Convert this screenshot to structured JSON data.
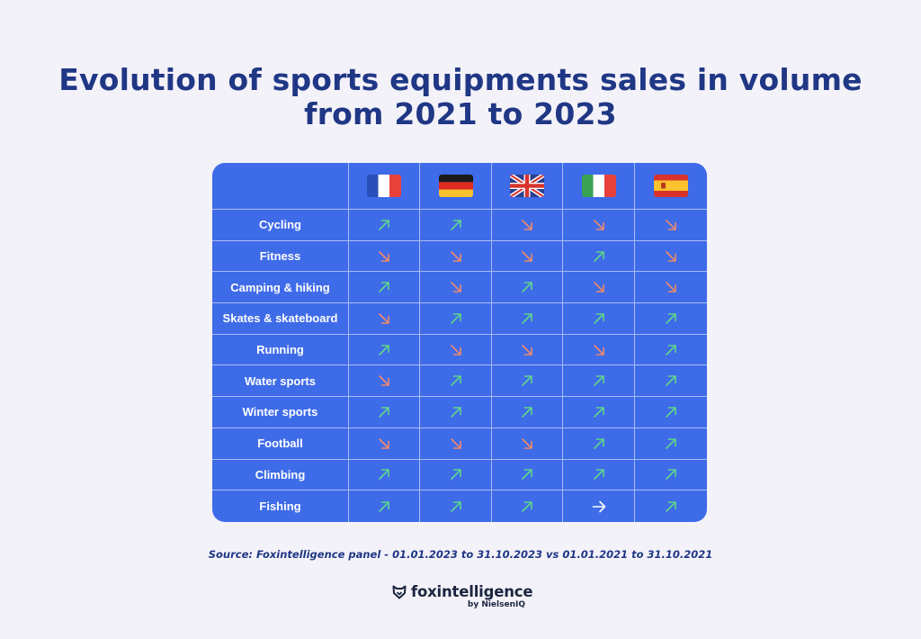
{
  "title_line1": "Evolution of sports equipments sales in volume",
  "title_line2": "from 2021 to 2023",
  "chart_data": {
    "type": "table",
    "title": "Evolution of sports equipments sales in volume from 2021 to 2023",
    "columns": [
      {
        "country": "France",
        "flag": "france-flag"
      },
      {
        "country": "Germany",
        "flag": "germany-flag"
      },
      {
        "country": "United Kingdom",
        "flag": "uk-flag"
      },
      {
        "country": "Italy",
        "flag": "italy-flag"
      },
      {
        "country": "Spain",
        "flag": "spain-flag"
      }
    ],
    "rows": [
      {
        "label": "Cycling",
        "trends": [
          "up",
          "up",
          "down",
          "down",
          "down"
        ]
      },
      {
        "label": "Fitness",
        "trends": [
          "down",
          "down",
          "down",
          "up",
          "down"
        ]
      },
      {
        "label": "Camping & hiking",
        "trends": [
          "up",
          "down",
          "up",
          "down",
          "down"
        ]
      },
      {
        "label": "Skates & skateboard",
        "trends": [
          "down",
          "up",
          "up",
          "up",
          "up"
        ]
      },
      {
        "label": "Running",
        "trends": [
          "up",
          "down",
          "down",
          "down",
          "up"
        ]
      },
      {
        "label": "Water sports",
        "trends": [
          "down",
          "up",
          "up",
          "up",
          "up"
        ]
      },
      {
        "label": "Winter sports",
        "trends": [
          "up",
          "up",
          "up",
          "up",
          "up"
        ]
      },
      {
        "label": "Football",
        "trends": [
          "down",
          "down",
          "down",
          "up",
          "up"
        ]
      },
      {
        "label": "Climbing",
        "trends": [
          "up",
          "up",
          "up",
          "up",
          "up"
        ]
      },
      {
        "label": "Fishing",
        "trends": [
          "up",
          "up",
          "up",
          "flat",
          "up"
        ]
      }
    ],
    "trend_colors": {
      "up": "#5fd68a",
      "down": "#ef8a6b",
      "flat": "#ffffff"
    }
  },
  "source": "Source: Foxintelligence panel - 01.01.2023 to 31.10.2023 vs 01.01.2021 to 31.10.2021",
  "brand": {
    "name": "foxintelligence",
    "sub": "by NielsenIQ",
    "icon": "fox-logo-icon"
  },
  "colors": {
    "background": "#f4f2f9",
    "table": "#3e6be8",
    "title": "#1f3785"
  }
}
